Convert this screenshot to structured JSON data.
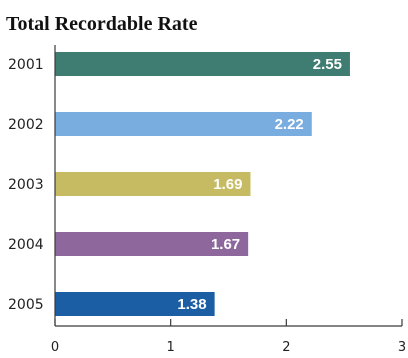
{
  "chart_data": {
    "type": "bar",
    "orientation": "horizontal",
    "title": "Total Recordable Rate",
    "categories": [
      "2001",
      "2002",
      "2003",
      "2004",
      "2005"
    ],
    "values": [
      2.55,
      2.22,
      1.69,
      1.67,
      1.38
    ],
    "value_labels": [
      "2.55",
      "2.22",
      "1.69",
      "1.67",
      "1.38"
    ],
    "colors": [
      "#3f7d72",
      "#79acdf",
      "#c6bb63",
      "#8e679d",
      "#1c5ea4"
    ],
    "xlim": [
      0,
      3
    ],
    "x_ticks": [
      0,
      1,
      2,
      3
    ],
    "x_tick_labels": [
      "0",
      "1",
      "2",
      "3"
    ],
    "xlabel": "",
    "ylabel": "",
    "grid": false,
    "legend": "none"
  }
}
